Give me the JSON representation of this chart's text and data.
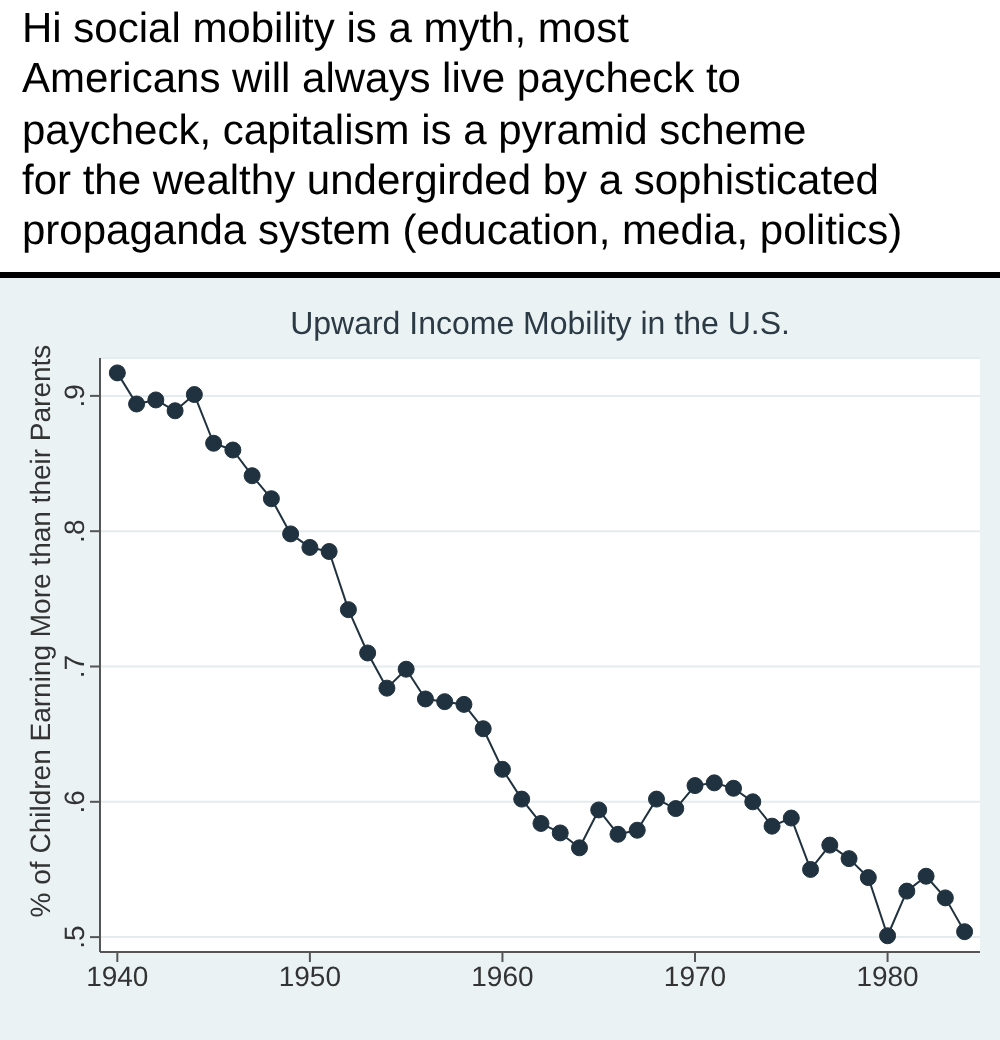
{
  "chart_data": {
    "type": "line",
    "title": "Upward Income Mobility in the U.S.",
    "ylabel": "% of Children Earning More than their Parents",
    "annotations": [
      "Hi social mobility is a myth, most\nAmericans will always live paycheck to\npaycheck, capitalism is a pyramid scheme\nfor the wealthy undergirded by a sophisticated\npropaganda system (education, media, politics)"
    ],
    "x": [
      1940,
      1941,
      1942,
      1943,
      1944,
      1945,
      1946,
      1947,
      1948,
      1949,
      1950,
      1951,
      1952,
      1953,
      1954,
      1955,
      1956,
      1957,
      1958,
      1959,
      1960,
      1961,
      1962,
      1963,
      1964,
      1965,
      1966,
      1967,
      1968,
      1969,
      1970,
      1971,
      1972,
      1973,
      1974,
      1975,
      1976,
      1977,
      1978,
      1979,
      1980,
      1981,
      1982,
      1983,
      1984
    ],
    "values": [
      0.917,
      0.894,
      0.897,
      0.889,
      0.901,
      0.865,
      0.86,
      0.841,
      0.824,
      0.798,
      0.788,
      0.785,
      0.742,
      0.71,
      0.684,
      0.698,
      0.676,
      0.674,
      0.672,
      0.654,
      0.624,
      0.602,
      0.584,
      0.577,
      0.566,
      0.594,
      0.576,
      0.579,
      0.602,
      0.595,
      0.612,
      0.614,
      0.61,
      0.6,
      0.582,
      0.588,
      0.55,
      0.568,
      0.558,
      0.544,
      0.501,
      0.534,
      0.545,
      0.529,
      0.504
    ],
    "color": "#20323f",
    "xlim": [
      1939.1,
      1984.8
    ],
    "xticks": [
      1940,
      1950,
      1960,
      1970,
      1980
    ],
    "ylim": [
      0.489,
      0.928
    ],
    "yticks": [
      {
        "value": 0.5,
        "label": ".5"
      },
      {
        "value": 0.6,
        "label": ".6"
      },
      {
        "value": 0.7,
        "label": ".7"
      },
      {
        "value": 0.8,
        "label": ".8"
      },
      {
        "value": 0.9,
        "label": ".9"
      }
    ],
    "grid": "y",
    "marker": "circle",
    "line_style": "solid"
  }
}
